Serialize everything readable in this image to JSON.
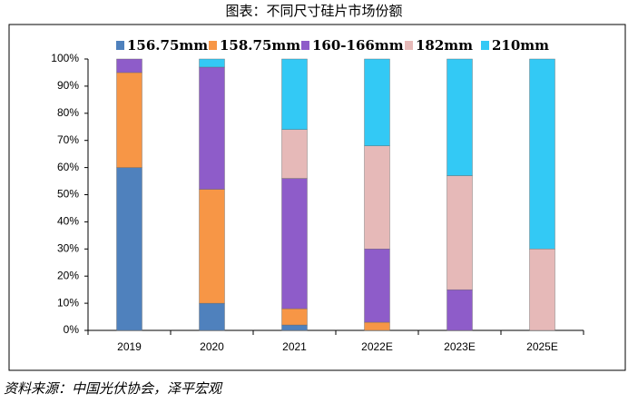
{
  "chart_data": {
    "type": "stacked-bar",
    "title": "图表：不同尺寸硅片市场份额",
    "source": "资料来源：中国光伏协会，泽平宏观",
    "categories": [
      "2019",
      "2020",
      "2021",
      "2022E",
      "2023E",
      "2025E"
    ],
    "series": [
      {
        "name": "156.75mm",
        "color": "#4f81bd",
        "values": [
          60,
          10,
          2,
          0,
          0,
          0
        ]
      },
      {
        "name": "158.75mm",
        "color": "#f79646",
        "values": [
          35,
          42,
          6,
          3,
          0,
          0
        ]
      },
      {
        "name": "160-166mm",
        "color": "#8e5cc9",
        "values": [
          5,
          45,
          48,
          27,
          15,
          0
        ]
      },
      {
        "name": "182mm",
        "color": "#e6b9b8",
        "values": [
          0,
          0,
          18,
          38,
          42,
          30
        ]
      },
      {
        "name": "210mm",
        "color": "#33c9f5",
        "values": [
          0,
          3,
          26,
          32,
          43,
          70
        ]
      }
    ],
    "ylim": [
      0,
      100
    ],
    "yticks": [
      {
        "value": 0,
        "label": "0%"
      },
      {
        "value": 10,
        "label": "10%"
      },
      {
        "value": 20,
        "label": "20%"
      },
      {
        "value": 30,
        "label": "30%"
      },
      {
        "value": 40,
        "label": "40%"
      },
      {
        "value": 50,
        "label": "50%"
      },
      {
        "value": 60,
        "label": "60%"
      },
      {
        "value": 70,
        "label": "70%"
      },
      {
        "value": 80,
        "label": "80%"
      },
      {
        "value": 90,
        "label": "90%"
      },
      {
        "value": 100,
        "label": "100%"
      }
    ]
  }
}
